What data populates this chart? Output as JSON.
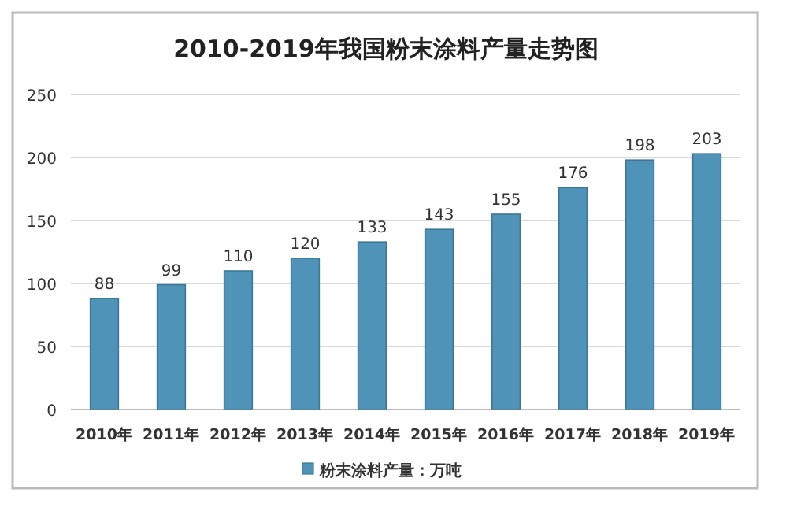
{
  "chart_data": {
    "type": "bar",
    "title": "2010-2019年我国粉末涂料产量走势图",
    "categories": [
      "2010年",
      "2011年",
      "2012年",
      "2013年",
      "2014年",
      "2015年",
      "2016年",
      "2017年",
      "2018年",
      "2019年"
    ],
    "series": [
      {
        "name": "粉末涂料产量：万吨",
        "color": "#4f93b8",
        "values": [
          88,
          99,
          110,
          120,
          133,
          143,
          155,
          176,
          198,
          203
        ]
      }
    ],
    "ylim": [
      0,
      250
    ],
    "yticks": [
      0,
      50,
      100,
      150,
      200,
      250
    ],
    "grid": "y",
    "legend": "bottom",
    "data_labels": true
  }
}
